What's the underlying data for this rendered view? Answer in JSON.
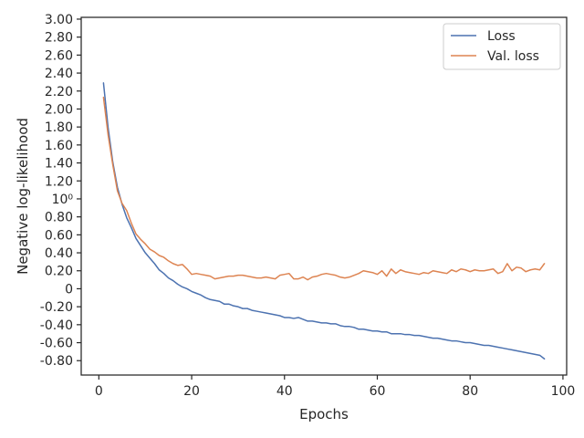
{
  "chart_data": {
    "type": "line",
    "title": "",
    "xlabel": "Epochs",
    "ylabel": "Negative log-likelihood",
    "xlim": [
      -3.8,
      100.8
    ],
    "ylim": [
      -0.96,
      3.02
    ],
    "xticks": [
      0,
      20,
      40,
      60,
      80,
      100
    ],
    "xtick_labels": [
      "0",
      "20",
      "40",
      "60",
      "80",
      "100"
    ],
    "yticks": [
      -0.8,
      -0.6,
      -0.4,
      -0.2,
      0,
      0.2,
      0.4,
      0.6,
      0.8,
      1.0,
      1.2,
      1.4,
      1.6,
      1.8,
      2.0,
      2.2,
      2.4,
      2.6,
      2.8,
      3.0
    ],
    "ytick_labels": [
      "-0.80",
      "-0.60",
      "-0.40",
      "-0.20",
      "0",
      "0.20",
      "0.40",
      "0.60",
      "0.80",
      "10⁰",
      "1.20",
      "1.40",
      "1.60",
      "1.80",
      "2.00",
      "2.20",
      "2.40",
      "2.60",
      "2.80",
      "3.00"
    ],
    "grid": false,
    "legend": "top-right",
    "x": [
      1,
      2,
      3,
      4,
      5,
      6,
      7,
      8,
      9,
      10,
      11,
      12,
      13,
      14,
      15,
      16,
      17,
      18,
      19,
      20,
      21,
      22,
      23,
      24,
      25,
      26,
      27,
      28,
      29,
      30,
      31,
      32,
      33,
      34,
      35,
      36,
      37,
      38,
      39,
      40,
      41,
      42,
      43,
      44,
      45,
      46,
      47,
      48,
      49,
      50,
      51,
      52,
      53,
      54,
      55,
      56,
      57,
      58,
      59,
      60,
      61,
      62,
      63,
      64,
      65,
      66,
      67,
      68,
      69,
      70,
      71,
      72,
      73,
      74,
      75,
      76,
      77,
      78,
      79,
      80,
      81,
      82,
      83,
      84,
      85,
      86,
      87,
      88,
      89,
      90,
      91,
      92,
      93,
      94,
      95,
      96
    ],
    "series": [
      {
        "name": "Loss",
        "color": "#4c72b0",
        "values": [
          2.29,
          1.79,
          1.41,
          1.13,
          0.94,
          0.79,
          0.68,
          0.56,
          0.48,
          0.4,
          0.34,
          0.28,
          0.21,
          0.17,
          0.12,
          0.09,
          0.05,
          0.02,
          0.0,
          -0.03,
          -0.05,
          -0.07,
          -0.1,
          -0.12,
          -0.13,
          -0.14,
          -0.17,
          -0.17,
          -0.19,
          -0.2,
          -0.22,
          -0.22,
          -0.24,
          -0.25,
          -0.26,
          -0.27,
          -0.28,
          -0.29,
          -0.3,
          -0.32,
          -0.32,
          -0.33,
          -0.32,
          -0.34,
          -0.36,
          -0.36,
          -0.37,
          -0.38,
          -0.38,
          -0.39,
          -0.39,
          -0.41,
          -0.42,
          -0.42,
          -0.43,
          -0.45,
          -0.45,
          -0.46,
          -0.47,
          -0.47,
          -0.48,
          -0.48,
          -0.5,
          -0.5,
          -0.5,
          -0.51,
          -0.51,
          -0.52,
          -0.52,
          -0.53,
          -0.54,
          -0.55,
          -0.55,
          -0.56,
          -0.57,
          -0.58,
          -0.58,
          -0.59,
          -0.6,
          -0.6,
          -0.61,
          -0.62,
          -0.63,
          -0.63,
          -0.64,
          -0.65,
          -0.66,
          -0.67,
          -0.68,
          -0.69,
          -0.7,
          -0.71,
          -0.72,
          -0.73,
          -0.74,
          -0.78
        ]
      },
      {
        "name": "Val. loss",
        "color": "#dd8452",
        "values": [
          2.13,
          1.71,
          1.38,
          1.09,
          0.95,
          0.87,
          0.73,
          0.61,
          0.55,
          0.5,
          0.44,
          0.41,
          0.37,
          0.35,
          0.31,
          0.28,
          0.26,
          0.27,
          0.22,
          0.16,
          0.17,
          0.16,
          0.15,
          0.14,
          0.11,
          0.12,
          0.13,
          0.14,
          0.14,
          0.15,
          0.15,
          0.14,
          0.13,
          0.12,
          0.12,
          0.13,
          0.12,
          0.11,
          0.15,
          0.16,
          0.17,
          0.11,
          0.11,
          0.13,
          0.1,
          0.13,
          0.14,
          0.16,
          0.17,
          0.16,
          0.15,
          0.13,
          0.12,
          0.13,
          0.15,
          0.17,
          0.2,
          0.19,
          0.18,
          0.16,
          0.2,
          0.14,
          0.22,
          0.17,
          0.21,
          0.19,
          0.18,
          0.17,
          0.16,
          0.18,
          0.17,
          0.2,
          0.19,
          0.18,
          0.17,
          0.21,
          0.19,
          0.22,
          0.21,
          0.19,
          0.21,
          0.2,
          0.2,
          0.21,
          0.22,
          0.17,
          0.19,
          0.28,
          0.2,
          0.24,
          0.23,
          0.19,
          0.21,
          0.22,
          0.21,
          0.28
        ]
      }
    ]
  }
}
